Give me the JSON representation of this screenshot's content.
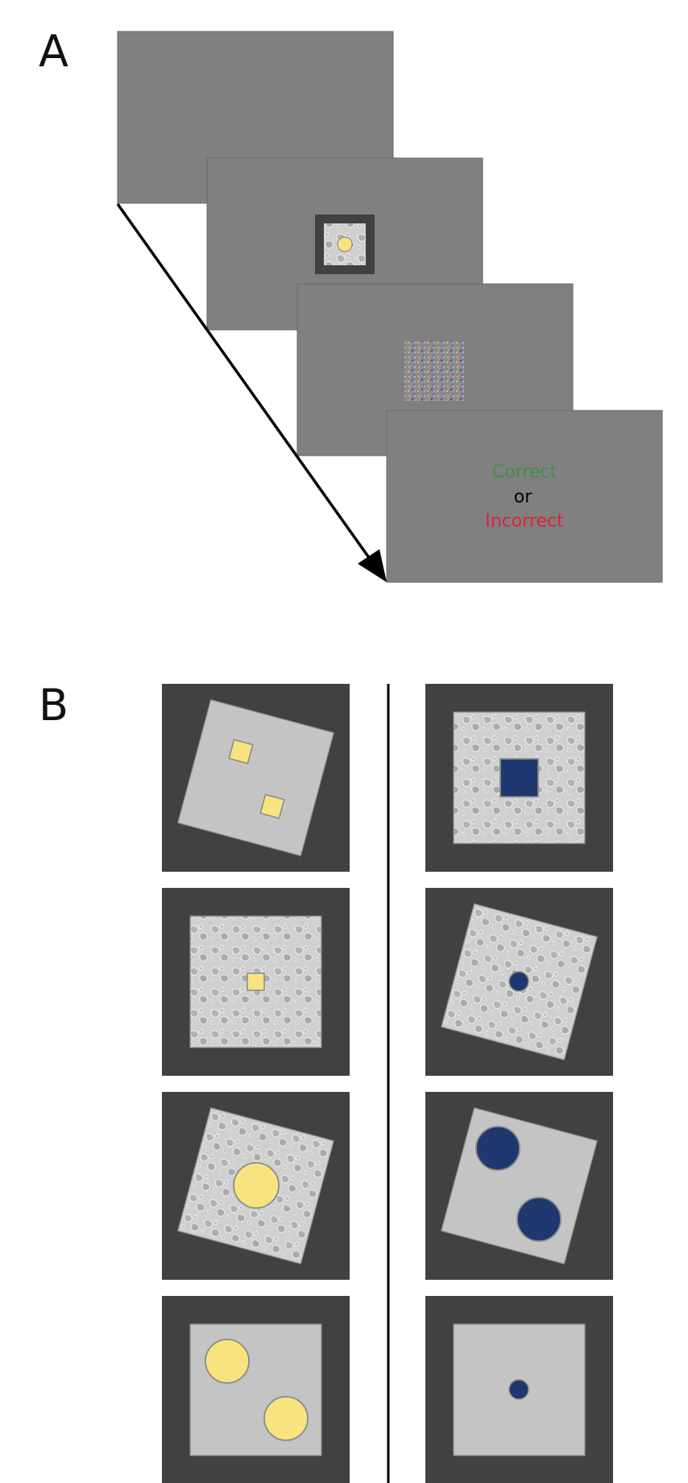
{
  "panel_a": {
    "label": "A",
    "feedback": {
      "correct": "Correct",
      "or": "or",
      "incorrect": "Incorrect",
      "correct_color": "#3f8f4a",
      "incorrect_color": "#e0203a"
    }
  },
  "panel_b": {
    "label": "B"
  },
  "colors": {
    "screen_gray": "#808080",
    "frame_dark": "#414141",
    "card_light": "#c4c4c4",
    "yellow_shape": "#f8e47e",
    "blue_shape": "#1f386f"
  }
}
